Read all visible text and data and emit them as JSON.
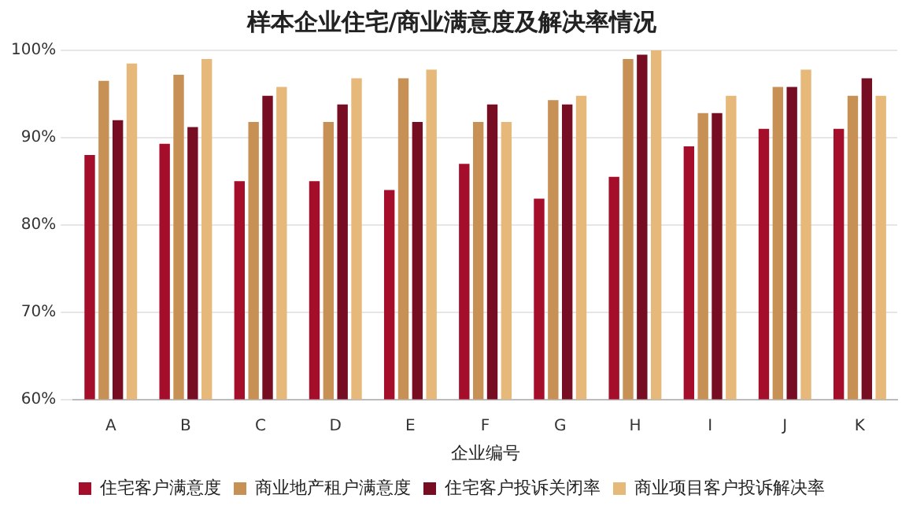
{
  "chart_data": {
    "type": "bar",
    "title": "样本企业住宅/商业满意度及解决率情况",
    "xlabel": "企业编号",
    "categories": [
      "A",
      "B",
      "C",
      "D",
      "E",
      "F",
      "G",
      "H",
      "I",
      "J",
      "K"
    ],
    "series": [
      {
        "name": "住宅客户满意度",
        "color": "#a50e2a",
        "values": [
          88,
          89.3,
          85,
          85,
          84,
          87,
          83,
          85.5,
          89,
          91,
          91
        ]
      },
      {
        "name": "商业地产租户满意度",
        "color": "#c79055",
        "values": [
          96.5,
          97.2,
          91.8,
          91.8,
          96.8,
          91.8,
          94.3,
          99,
          92.8,
          95.8,
          94.8
        ]
      },
      {
        "name": "住宅客户投诉关闭率",
        "color": "#760d22",
        "values": [
          92,
          91.2,
          94.8,
          93.8,
          91.8,
          93.8,
          93.8,
          99.5,
          92.8,
          95.8,
          96.8
        ]
      },
      {
        "name": "商业项目客户投诉解决率",
        "color": "#e6b87a",
        "values": [
          98.5,
          99,
          95.8,
          96.8,
          97.8,
          91.8,
          94.8,
          100,
          94.8,
          97.8,
          94.8
        ]
      }
    ],
    "ylim": [
      60,
      100
    ],
    "yticks": [
      {
        "value": 60,
        "label": "60%"
      },
      {
        "value": 70,
        "label": "70%"
      },
      {
        "value": 80,
        "label": "80%"
      },
      {
        "value": 90,
        "label": "90%"
      },
      {
        "value": 100,
        "label": "100%"
      }
    ],
    "grid": "y",
    "legend": "bottom"
  }
}
